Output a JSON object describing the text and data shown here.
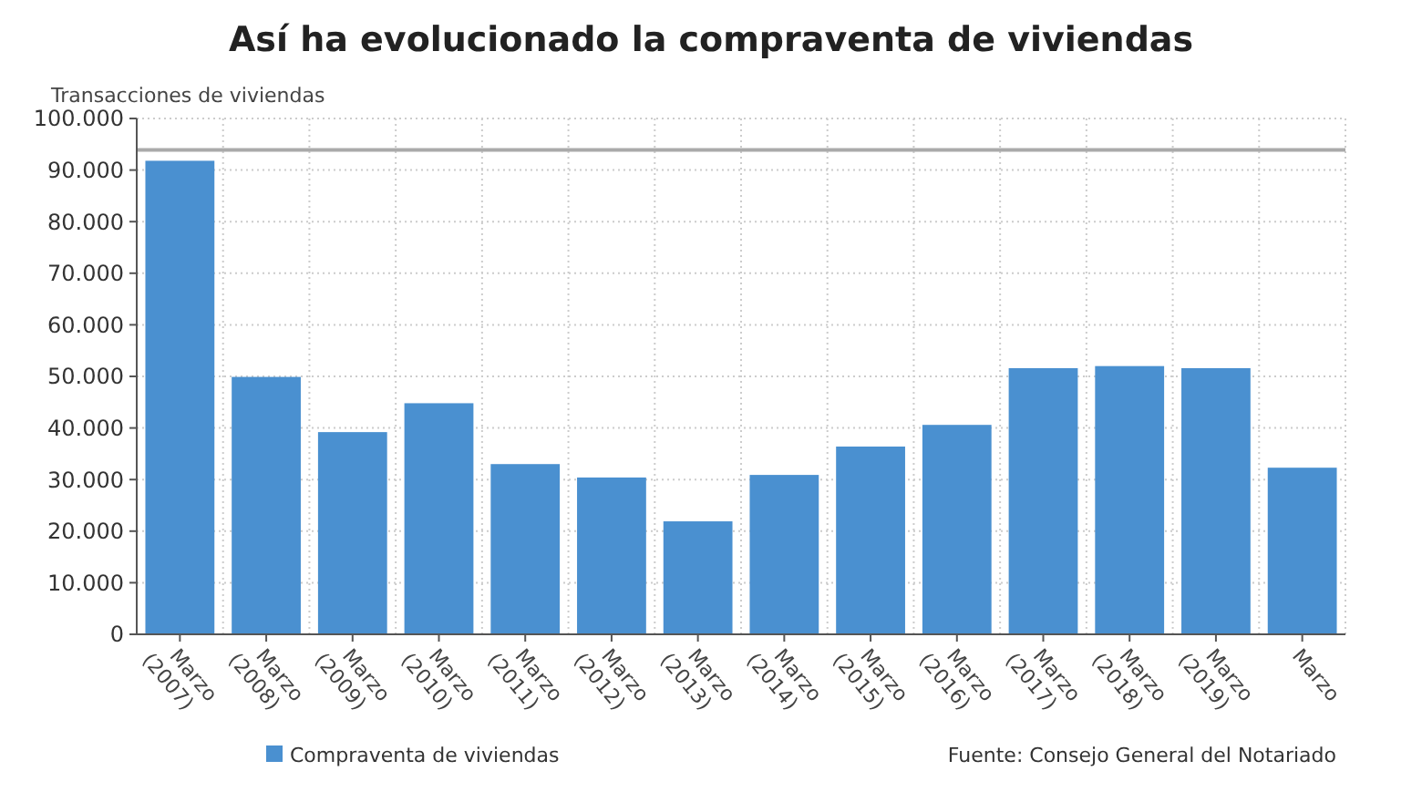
{
  "chart_data": {
    "type": "bar",
    "title": "Así ha evolucionado la compraventa de viviendas",
    "ylabel": "Transacciones de viviendas",
    "categories": [
      "Marzo (2007)",
      "Marzo (2008)",
      "Marzo (2009)",
      "Marzo (2010)",
      "Marzo (2011)",
      "Marzo (2012)",
      "Marzo (2013)",
      "Marzo (2014)",
      "Marzo (2015)",
      "Marzo (2016)",
      "Marzo (2017)",
      "Marzo (2018)",
      "Marzo (2019)",
      "Marzo"
    ],
    "series": [
      {
        "name": "Compraventa de viviendas",
        "color": "#4a90d0",
        "values": [
          91800,
          49900,
          39200,
          44800,
          33000,
          30400,
          21900,
          30900,
          36400,
          40600,
          51600,
          52000,
          51600,
          32300
        ]
      }
    ],
    "ylim": [
      0,
      100000
    ],
    "yticks": [
      {
        "value": 0,
        "label": "0"
      },
      {
        "value": 10000,
        "label": "10.000"
      },
      {
        "value": 20000,
        "label": "20.000"
      },
      {
        "value": 30000,
        "label": "30.000"
      },
      {
        "value": 40000,
        "label": "40.000"
      },
      {
        "value": 50000,
        "label": "50.000"
      },
      {
        "value": 60000,
        "label": "60.000"
      },
      {
        "value": 70000,
        "label": "70.000"
      },
      {
        "value": 80000,
        "label": "80.000"
      },
      {
        "value": 90000,
        "label": "90.000"
      },
      {
        "value": 100000,
        "label": "100.000"
      }
    ],
    "ref_lines": [
      {
        "axis": "y",
        "value": 93900,
        "color": "#aaaaaa"
      }
    ],
    "grid": true,
    "legend": "bottom",
    "annotations": [
      "Fuente: Consejo General del Notariado"
    ]
  }
}
